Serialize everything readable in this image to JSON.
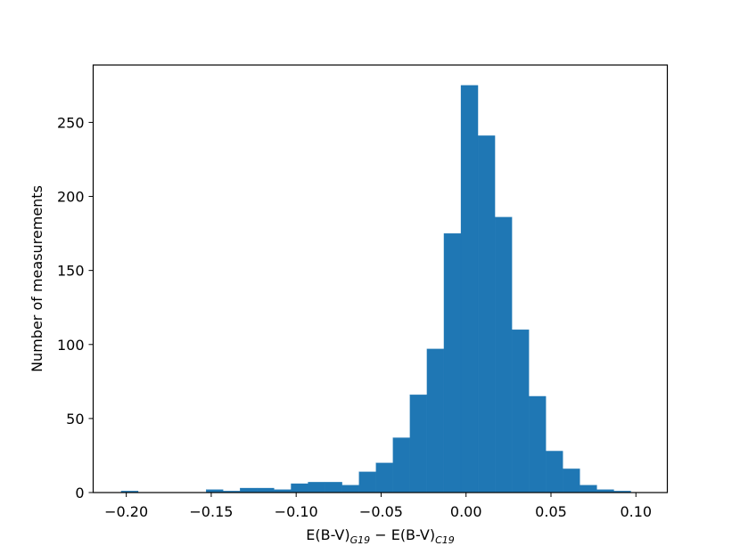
{
  "chart_data": {
    "type": "bar",
    "subtype": "histogram",
    "bin_width": 0.01,
    "bins_left": [
      -0.203,
      -0.193,
      -0.183,
      -0.173,
      -0.163,
      -0.153,
      -0.143,
      -0.133,
      -0.123,
      -0.113,
      -0.103,
      -0.093,
      -0.083,
      -0.073,
      -0.063,
      -0.053,
      -0.043,
      -0.033,
      -0.023,
      -0.013,
      -0.003,
      0.007,
      0.017,
      0.027,
      0.037,
      0.047,
      0.057,
      0.067,
      0.077,
      0.087,
      0.097
    ],
    "values": [
      1,
      0,
      0,
      0,
      0,
      2,
      1,
      3,
      3,
      2,
      6,
      7,
      7,
      5,
      14,
      20,
      37,
      66,
      97,
      175,
      275,
      241,
      186,
      110,
      65,
      28,
      16,
      5,
      2,
      1,
      0
    ],
    "xlim": [
      -0.2195,
      0.1185
    ],
    "ylim": [
      0,
      288.75
    ],
    "xticks": [
      -0.2,
      -0.15,
      -0.1,
      -0.05,
      0.0,
      0.05,
      0.1
    ],
    "xtick_labels": [
      "−0.20",
      "−0.15",
      "−0.10",
      "−0.05",
      "0.00",
      "0.05",
      "0.10"
    ],
    "yticks": [
      0,
      50,
      100,
      150,
      200,
      250
    ],
    "ytick_labels": [
      "0",
      "50",
      "100",
      "150",
      "200",
      "250"
    ],
    "xlabel": {
      "part1": "E(B-V)",
      "sub1": "G19",
      "part2": " − E(B-V)",
      "sub2": "C19"
    },
    "ylabel": "Number of measurements",
    "bar_color": "#1f77b4",
    "grid": false,
    "legend": "none"
  }
}
